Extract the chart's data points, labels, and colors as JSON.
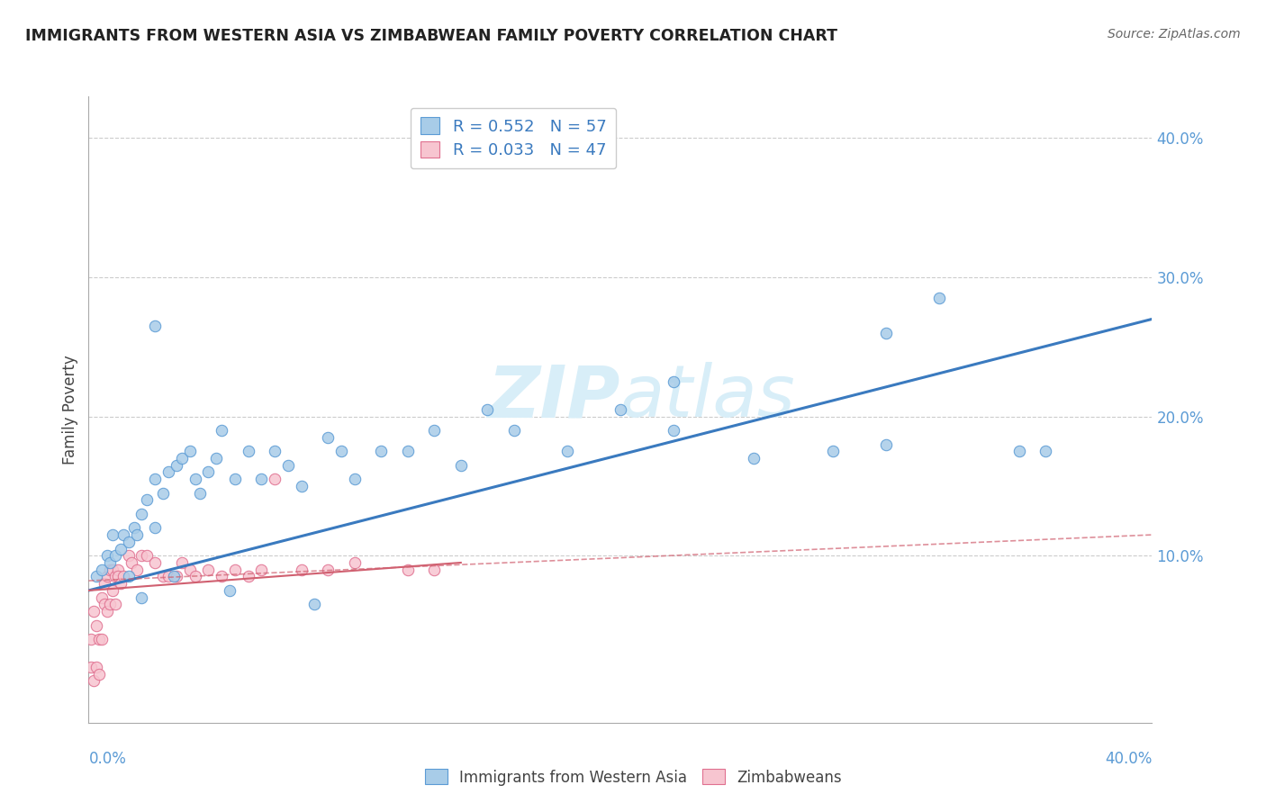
{
  "title": "IMMIGRANTS FROM WESTERN ASIA VS ZIMBABWEAN FAMILY POVERTY CORRELATION CHART",
  "source": "Source: ZipAtlas.com",
  "ylabel": "Family Poverty",
  "ytick_vals": [
    0.1,
    0.2,
    0.3,
    0.4
  ],
  "ytick_labels": [
    "10.0%",
    "20.0%",
    "30.0%",
    "40.0%"
  ],
  "xtick_labels": [
    "0.0%",
    "40.0%"
  ],
  "xrange": [
    0.0,
    0.4
  ],
  "yrange": [
    -0.02,
    0.43
  ],
  "legend1_R": "0.552",
  "legend1_N": "57",
  "legend2_R": "0.033",
  "legend2_N": "47",
  "color_blue_fill": "#a8cce8",
  "color_blue_edge": "#5b9bd5",
  "color_pink_fill": "#f7c5d0",
  "color_pink_edge": "#e07090",
  "color_blue_line": "#3a7abf",
  "color_pink_line": "#d06070",
  "watermark_color": "#d8eef8",
  "grid_color": "#cccccc",
  "background_color": "#ffffff",
  "blue_scatter_x": [
    0.003,
    0.005,
    0.007,
    0.008,
    0.009,
    0.01,
    0.012,
    0.013,
    0.015,
    0.015,
    0.017,
    0.018,
    0.02,
    0.02,
    0.022,
    0.025,
    0.025,
    0.028,
    0.03,
    0.032,
    0.033,
    0.035,
    0.038,
    0.04,
    0.042,
    0.045,
    0.048,
    0.05,
    0.053,
    0.055,
    0.06,
    0.065,
    0.07,
    0.075,
    0.08,
    0.085,
    0.09,
    0.095,
    0.1,
    0.11,
    0.12,
    0.13,
    0.14,
    0.15,
    0.16,
    0.18,
    0.2,
    0.22,
    0.25,
    0.28,
    0.3,
    0.32,
    0.35,
    0.36,
    0.025,
    0.22,
    0.3
  ],
  "blue_scatter_y": [
    0.085,
    0.09,
    0.1,
    0.095,
    0.115,
    0.1,
    0.105,
    0.115,
    0.11,
    0.085,
    0.12,
    0.115,
    0.07,
    0.13,
    0.14,
    0.12,
    0.155,
    0.145,
    0.16,
    0.085,
    0.165,
    0.17,
    0.175,
    0.155,
    0.145,
    0.16,
    0.17,
    0.19,
    0.075,
    0.155,
    0.175,
    0.155,
    0.175,
    0.165,
    0.15,
    0.065,
    0.185,
    0.175,
    0.155,
    0.175,
    0.175,
    0.19,
    0.165,
    0.205,
    0.19,
    0.175,
    0.205,
    0.225,
    0.17,
    0.175,
    0.18,
    0.285,
    0.175,
    0.175,
    0.265,
    0.19,
    0.26
  ],
  "pink_scatter_x": [
    0.001,
    0.001,
    0.002,
    0.002,
    0.003,
    0.003,
    0.004,
    0.004,
    0.005,
    0.005,
    0.006,
    0.006,
    0.007,
    0.007,
    0.008,
    0.008,
    0.009,
    0.009,
    0.01,
    0.01,
    0.011,
    0.011,
    0.012,
    0.013,
    0.015,
    0.016,
    0.018,
    0.02,
    0.022,
    0.025,
    0.028,
    0.03,
    0.033,
    0.035,
    0.038,
    0.04,
    0.045,
    0.05,
    0.055,
    0.06,
    0.065,
    0.07,
    0.08,
    0.09,
    0.1,
    0.12,
    0.13
  ],
  "pink_scatter_y": [
    0.04,
    0.02,
    0.06,
    0.01,
    0.05,
    0.02,
    0.04,
    0.015,
    0.07,
    0.04,
    0.08,
    0.065,
    0.085,
    0.06,
    0.09,
    0.065,
    0.09,
    0.075,
    0.085,
    0.065,
    0.09,
    0.085,
    0.08,
    0.085,
    0.1,
    0.095,
    0.09,
    0.1,
    0.1,
    0.095,
    0.085,
    0.085,
    0.085,
    0.095,
    0.09,
    0.085,
    0.09,
    0.085,
    0.09,
    0.085,
    0.09,
    0.155,
    0.09,
    0.09,
    0.095,
    0.09,
    0.09
  ],
  "blue_line_x": [
    0.0,
    0.4
  ],
  "blue_line_y": [
    0.075,
    0.27
  ],
  "pink_line_x": [
    0.0,
    0.14
  ],
  "pink_line_y": [
    0.075,
    0.095
  ],
  "pink_dash_line_x": [
    0.0,
    0.4
  ],
  "pink_dash_line_y": [
    0.082,
    0.115
  ]
}
